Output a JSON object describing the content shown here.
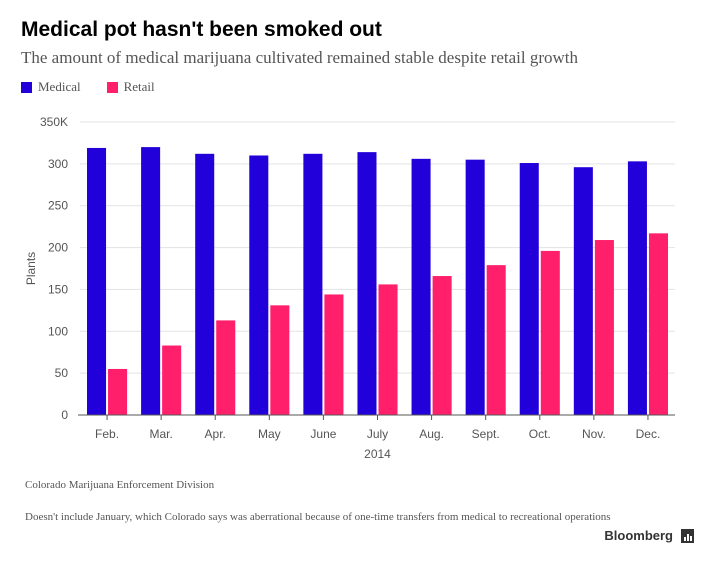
{
  "header": {
    "title": "Medical pot hasn't been smoked out",
    "subtitle": "The amount of medical marijuana cultivated remained stable despite retail growth"
  },
  "legend": [
    {
      "label": "Medical",
      "color": "#2200d9"
    },
    {
      "label": "Retail",
      "color": "#ff1f6b"
    }
  ],
  "footer": {
    "source": "Colorado Marijuana Enforcement Division",
    "note": "Doesn't include January, which Colorado says was aberrational because of one-time transfers from medical to recreational operations",
    "brand": "Bloomberg"
  },
  "chart_data": {
    "type": "bar",
    "title": "Medical pot hasn't been smoked out",
    "subtitle": "The amount of medical marijuana cultivated remained stable despite retail growth",
    "xlabel": "2014",
    "ylabel": "Plants",
    "ylim": [
      0,
      350
    ],
    "yticks": [
      0,
      50,
      100,
      150,
      200,
      250,
      300,
      350
    ],
    "ytick_labels": [
      "0",
      "50",
      "100",
      "150",
      "200",
      "250",
      "300",
      "350K"
    ],
    "grid": true,
    "legend_position": "top-left",
    "categories": [
      "Feb.",
      "Mar.",
      "Apr.",
      "May",
      "June",
      "July",
      "Aug.",
      "Sept.",
      "Oct.",
      "Nov.",
      "Dec."
    ],
    "series": [
      {
        "name": "Medical",
        "color": "#2200d9",
        "values": [
          319,
          320,
          312,
          310,
          312,
          314,
          306,
          305,
          301,
          296,
          303
        ]
      },
      {
        "name": "Retail",
        "color": "#ff1f6b",
        "values": [
          55,
          83,
          113,
          131,
          144,
          156,
          166,
          179,
          196,
          209,
          217
        ]
      }
    ]
  }
}
